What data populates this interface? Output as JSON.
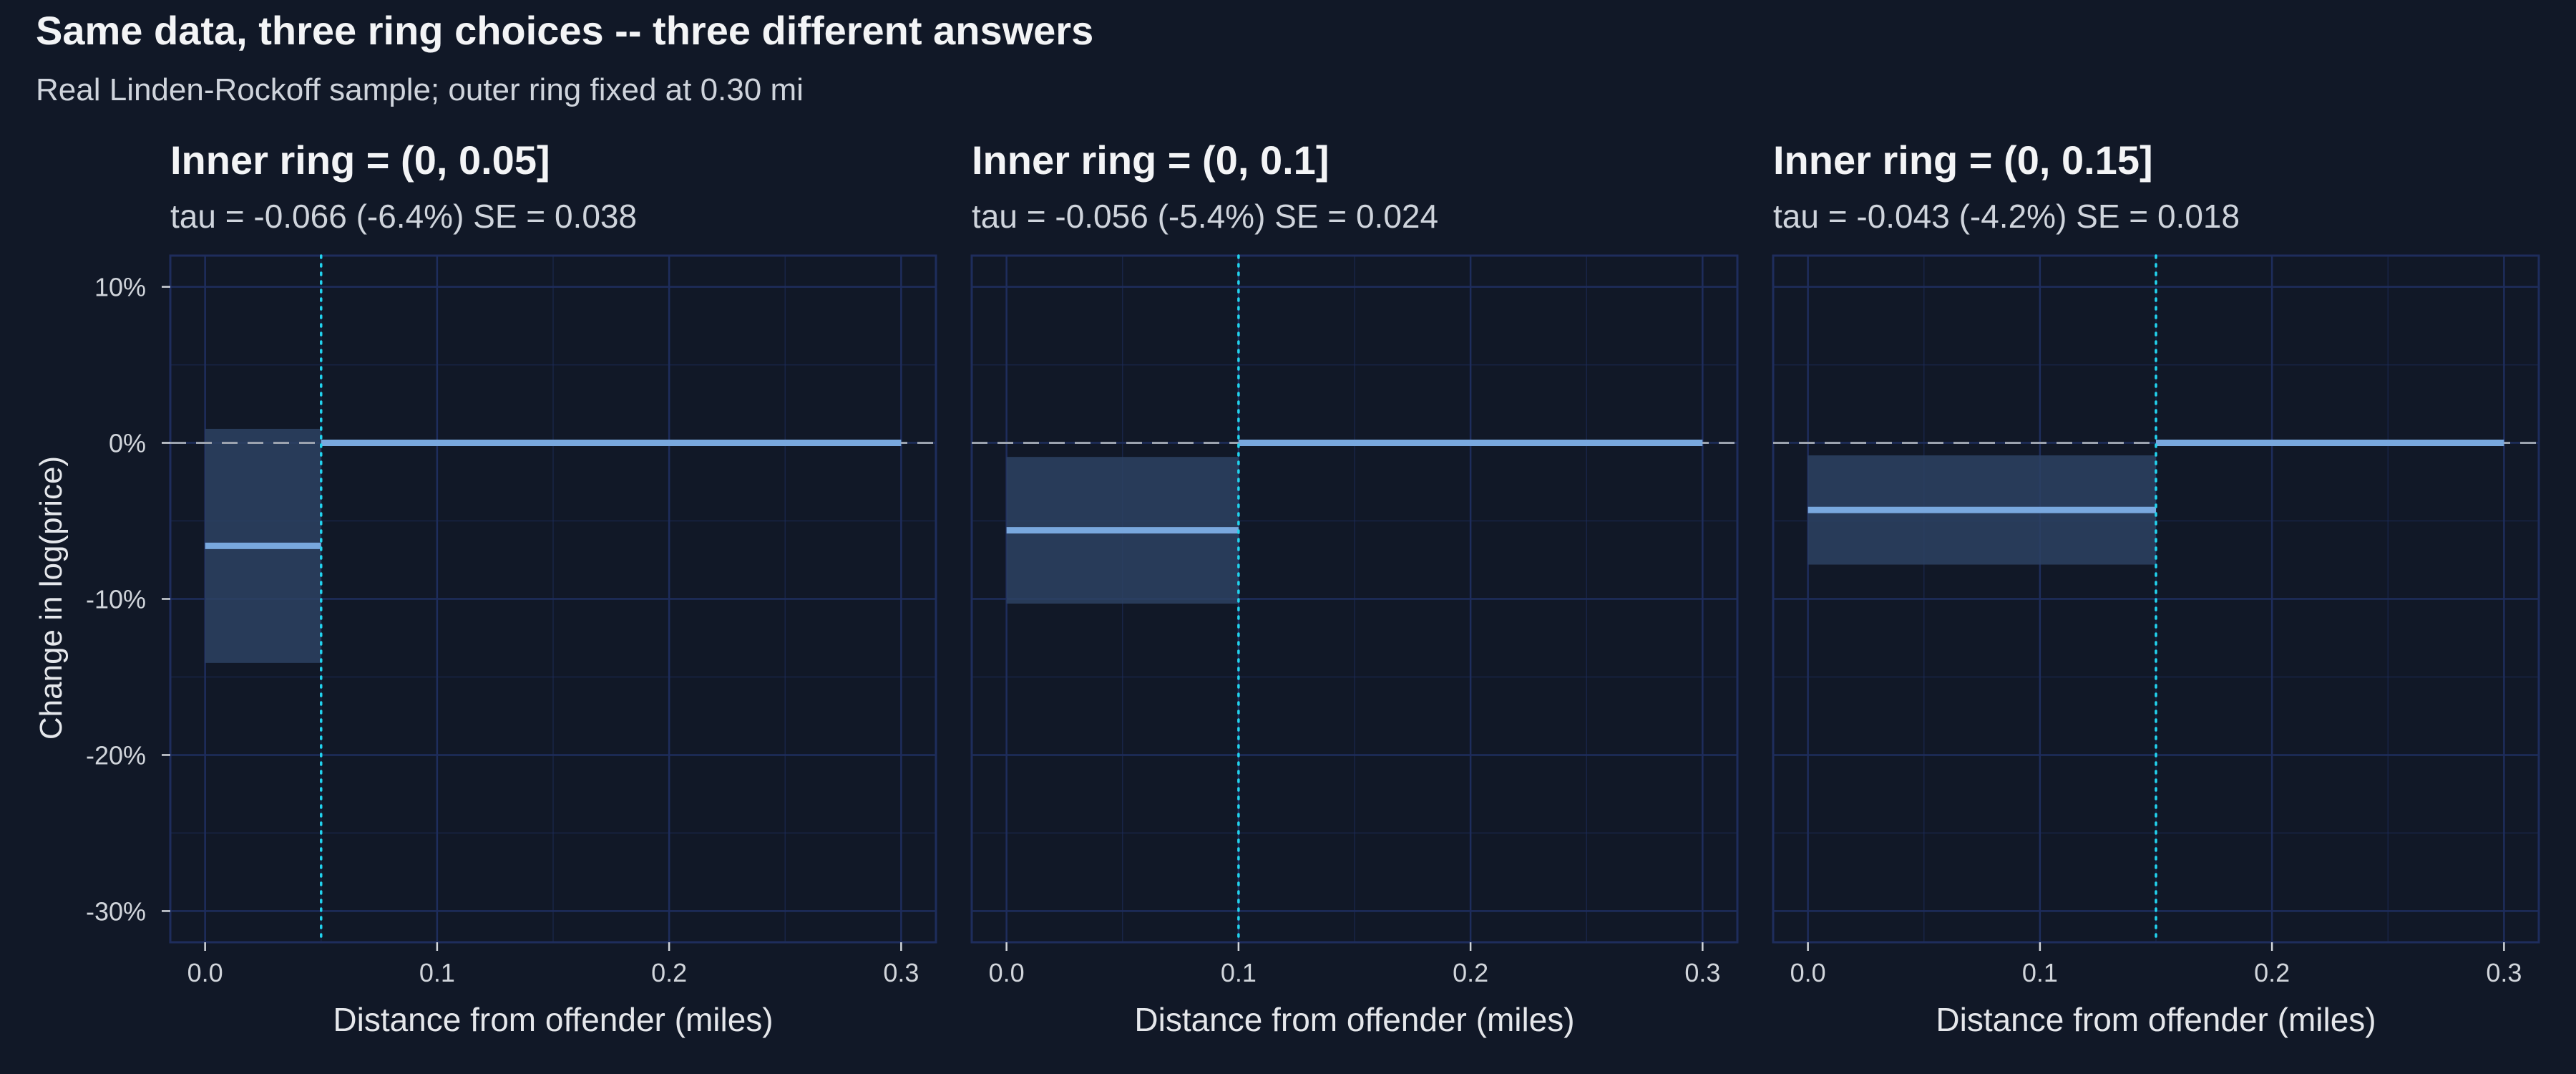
{
  "title": "Same data, three ring choices -- three different answers",
  "subtitle": "Real Linden-Rockoff sample; outer ring fixed at 0.30 mi",
  "ylabel": "Change in log(price)",
  "colors": {
    "background": "#111827",
    "panel_border": "#1e2d5c",
    "grid": "#1e2d5c",
    "estimate_line": "#79a8de",
    "ci_fill": "#2d4263",
    "zero_line": "#9ca3af",
    "ring_boundary": "#22d3ee",
    "title_text": "#f3f4f6",
    "subtitle_text": "#cfd4dc",
    "axis_text": "#d1d5db"
  },
  "chart_data": [
    {
      "type": "line",
      "panel_title": "Inner ring = (0, 0.05]",
      "panel_subtitle": "tau = -0.066  (-6.4%)  SE = 0.038",
      "xlabel": "Distance from offender (miles)",
      "ylabel": "Change in log(price)",
      "xlim": [
        -0.015,
        0.315
      ],
      "ylim": [
        -0.32,
        0.12
      ],
      "xticks": [
        0.0,
        0.1,
        0.2,
        0.3
      ],
      "xtick_labels": [
        "0.0",
        "0.1",
        "0.2",
        "0.3"
      ],
      "yticks": [
        0.1,
        0.0,
        -0.1,
        -0.2,
        -0.3
      ],
      "ytick_labels": [
        "10%",
        "0%",
        "-10%",
        "-20%",
        "-30%"
      ],
      "inner_ring": [
        0,
        0.05
      ],
      "outer_ring": [
        0.05,
        0.3
      ],
      "tau": -0.066,
      "ci": [
        -0.141,
        0.009
      ],
      "reference_line_y": 0,
      "boundary_x": 0.05,
      "grid": true
    },
    {
      "type": "line",
      "panel_title": "Inner ring = (0, 0.1]",
      "panel_subtitle": "tau = -0.056  (-5.4%)  SE = 0.024",
      "xlabel": "Distance from offender (miles)",
      "xlim": [
        -0.015,
        0.315
      ],
      "ylim": [
        -0.32,
        0.12
      ],
      "xticks": [
        0.0,
        0.1,
        0.2,
        0.3
      ],
      "xtick_labels": [
        "0.0",
        "0.1",
        "0.2",
        "0.3"
      ],
      "yticks": [
        0.1,
        0.0,
        -0.1,
        -0.2,
        -0.3
      ],
      "inner_ring": [
        0,
        0.1
      ],
      "outer_ring": [
        0.1,
        0.3
      ],
      "tau": -0.056,
      "ci": [
        -0.103,
        -0.009
      ],
      "reference_line_y": 0,
      "boundary_x": 0.1,
      "grid": true
    },
    {
      "type": "line",
      "panel_title": "Inner ring = (0, 0.15]",
      "panel_subtitle": "tau = -0.043  (-4.2%)  SE = 0.018",
      "xlabel": "Distance from offender (miles)",
      "xlim": [
        -0.015,
        0.315
      ],
      "ylim": [
        -0.32,
        0.12
      ],
      "xticks": [
        0.0,
        0.1,
        0.2,
        0.3
      ],
      "xtick_labels": [
        "0.0",
        "0.1",
        "0.2",
        "0.3"
      ],
      "yticks": [
        0.1,
        0.0,
        -0.1,
        -0.2,
        -0.3
      ],
      "inner_ring": [
        0,
        0.15
      ],
      "outer_ring": [
        0.15,
        0.3
      ],
      "tau": -0.043,
      "ci": [
        -0.078,
        -0.008
      ],
      "reference_line_y": 0,
      "boundary_x": 0.15,
      "grid": true
    }
  ]
}
